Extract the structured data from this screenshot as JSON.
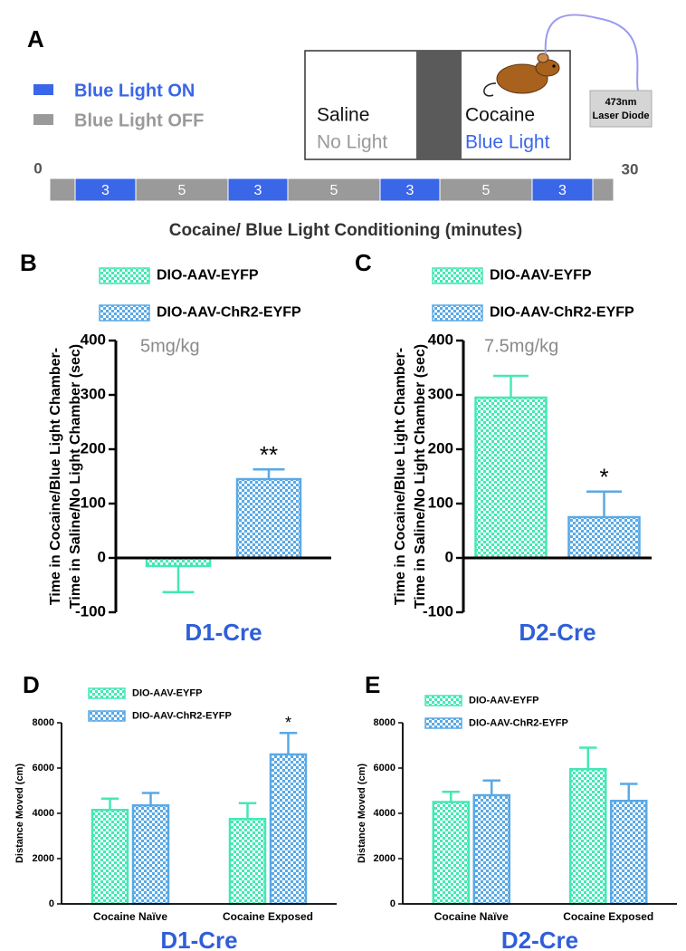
{
  "panel_a": {
    "label": "A",
    "legend": [
      "Blue Light ON",
      "Blue Light OFF"
    ],
    "chambers": {
      "left": [
        "Saline",
        "No Light"
      ],
      "right": [
        "Cocaine",
        "Blue Light"
      ]
    },
    "laser": [
      "473nm",
      "Laser Diode"
    ],
    "timeline": {
      "start": "0",
      "end": "30",
      "segments": [
        "3",
        "5",
        "3",
        "5",
        "3",
        "5",
        "3"
      ],
      "caption": "Cocaine/ Blue Light Conditioning (minutes)"
    }
  },
  "chart_data": [
    {
      "type": "bar",
      "panel_label": "B",
      "annotation": "5mg/kg",
      "ylabel": [
        "Time in  Cocaine/Blue Light Chamber-",
        "Time in  Saline/No Light Chamber (sec)"
      ],
      "xlabel": "D1-Cre",
      "categories": [
        null
      ],
      "series": [
        {
          "name": "DIO-AAV-EYFP",
          "color": "#45e8b5",
          "values": [
            -15
          ],
          "errors": [
            48
          ],
          "annotations": [
            null
          ]
        },
        {
          "name": "DIO-AAV-ChR2-EYFP",
          "color": "#5aa9e6",
          "values": [
            145
          ],
          "errors": [
            18
          ],
          "annotations": [
            "**"
          ]
        }
      ],
      "ylim": [
        -100,
        400
      ],
      "yticks": [
        -100,
        0,
        100,
        200,
        300,
        400
      ]
    },
    {
      "type": "bar",
      "panel_label": "C",
      "annotation": "7.5mg/kg",
      "ylabel": [
        "Time in  Cocaine/Blue Light Chamber-",
        "Time in  Saline/No Light Chamber (sec)"
      ],
      "xlabel": "D2-Cre",
      "categories": [
        null
      ],
      "series": [
        {
          "name": "DIO-AAV-EYFP",
          "color": "#45e8b5",
          "values": [
            295
          ],
          "errors": [
            40
          ],
          "annotations": [
            null
          ]
        },
        {
          "name": "DIO-AAV-ChR2-EYFP",
          "color": "#5aa9e6",
          "values": [
            75
          ],
          "errors": [
            47
          ],
          "annotations": [
            "*"
          ]
        }
      ],
      "ylim": [
        -100,
        400
      ],
      "yticks": [
        -100,
        0,
        100,
        200,
        300,
        400
      ]
    },
    {
      "type": "bar",
      "panel_label": "D",
      "ylabel": [
        "Distance Moved (cm)"
      ],
      "xlabel": "D1-Cre",
      "categories": [
        "Cocaine Naïve",
        "Cocaine Exposed"
      ],
      "series": [
        {
          "name": "DIO-AAV-EYFP",
          "color": "#45e8b5",
          "values": [
            4150,
            3750
          ],
          "errors": [
            500,
            700
          ],
          "annotations": [
            null,
            null
          ]
        },
        {
          "name": "DIO-AAV-ChR2-EYFP",
          "color": "#5aa9e6",
          "values": [
            4350,
            6600
          ],
          "errors": [
            550,
            950
          ],
          "annotations": [
            null,
            "*"
          ]
        }
      ],
      "ylim": [
        0,
        8000
      ],
      "yticks": [
        0,
        2000,
        4000,
        6000,
        8000
      ]
    },
    {
      "type": "bar",
      "panel_label": "E",
      "ylabel": [
        "Distance Moved (cm)"
      ],
      "xlabel": "D2-Cre",
      "categories": [
        "Cocaine Naïve",
        "Cocaine Exposed"
      ],
      "series": [
        {
          "name": "DIO-AAV-EYFP",
          "color": "#45e8b5",
          "values": [
            4500,
            5950
          ],
          "errors": [
            450,
            950
          ],
          "annotations": [
            null,
            null
          ]
        },
        {
          "name": "DIO-AAV-ChR2-EYFP",
          "color": "#5aa9e6",
          "values": [
            4800,
            4550
          ],
          "errors": [
            650,
            750
          ],
          "annotations": [
            null,
            null
          ]
        }
      ],
      "ylim": [
        0,
        8000
      ],
      "yticks": [
        0,
        2000,
        4000,
        6000,
        8000
      ]
    }
  ]
}
